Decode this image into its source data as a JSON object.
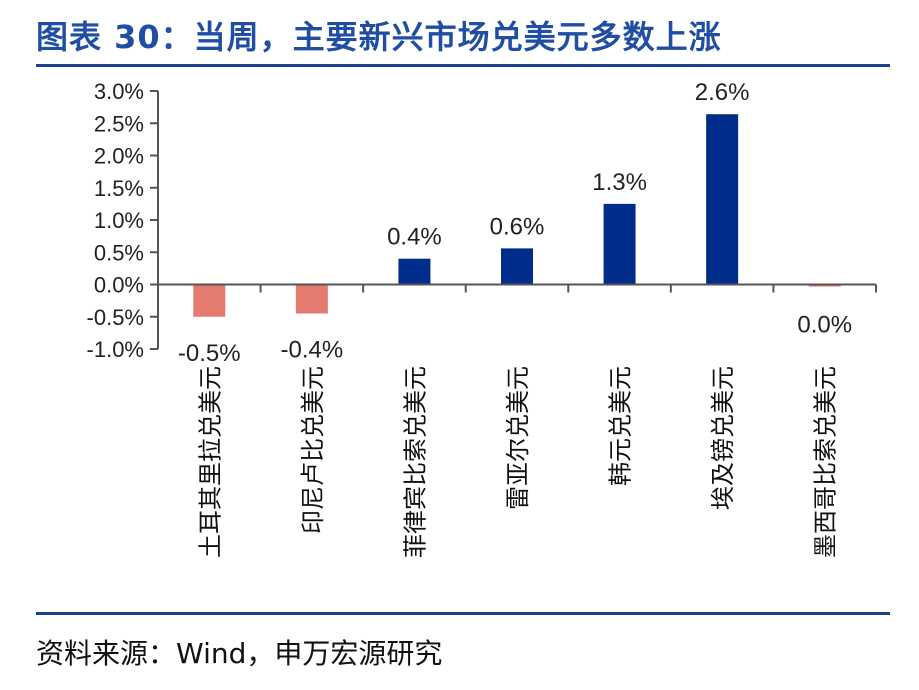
{
  "header": {
    "title": "图表 30：当周，主要新兴市场兑美元多数上涨"
  },
  "footer": {
    "source": "资料来源：Wind，申万宏源研究"
  },
  "colors": {
    "positive": "#002c8c",
    "negative": "#e57a70",
    "title": "#1f4ea3",
    "rule": "#1f3f8f"
  },
  "chart_data": {
    "type": "bar",
    "categories": [
      "土耳其里拉兑美元",
      "印尼卢比兑美元",
      "菲律宾比索兑美元",
      "雷亚尔兑美元",
      "韩元兑美元",
      "埃及镑兑美元",
      "墨西哥比索兑美元"
    ],
    "values": [
      -0.5,
      -0.45,
      0.4,
      0.56,
      1.25,
      2.64,
      -0.03
    ],
    "data_labels": [
      "-0.5%",
      "-0.4%",
      "0.4%",
      "0.6%",
      "1.3%",
      "2.6%",
      "0.0%"
    ],
    "y_ticks": [
      "3.0%",
      "2.5%",
      "2.0%",
      "1.5%",
      "1.0%",
      "0.5%",
      "0.0%",
      "-0.5%",
      "-1.0%"
    ],
    "y_tick_values": [
      3.0,
      2.5,
      2.0,
      1.5,
      1.0,
      0.5,
      0.0,
      -0.5,
      -1.0
    ],
    "ylim": [
      -1.0,
      3.0
    ],
    "grid": false,
    "legend": "none",
    "title": "",
    "xlabel": "",
    "ylabel": ""
  }
}
